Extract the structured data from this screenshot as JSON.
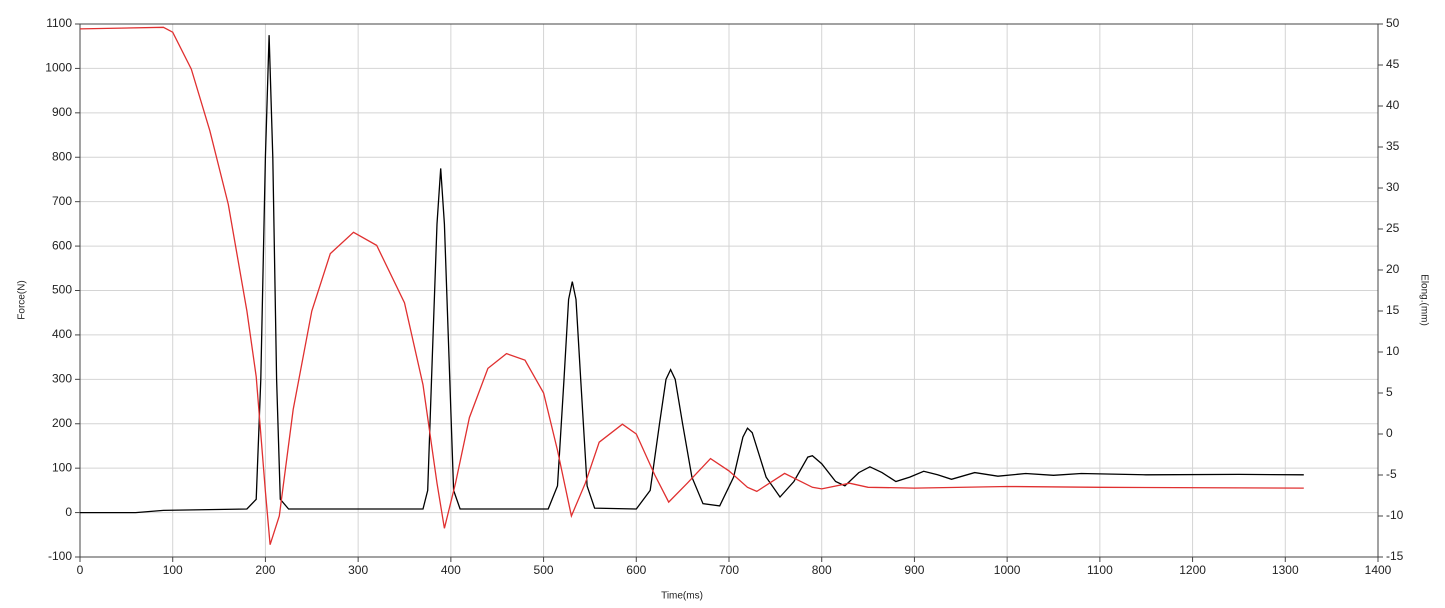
{
  "chart_data": {
    "type": "line",
    "x_label": "Time(ms)",
    "y_label": "Force(N)",
    "y2_label": "Elong.(mm)",
    "xlim": [
      0,
      1400
    ],
    "xticks": [
      0,
      100,
      200,
      300,
      400,
      500,
      600,
      700,
      800,
      900,
      1000,
      1100,
      1200,
      1300,
      1400
    ],
    "ylim": [
      -100,
      1100
    ],
    "yticks": [
      -100,
      0,
      100,
      200,
      300,
      400,
      500,
      600,
      700,
      800,
      900,
      1000,
      1100
    ],
    "y2lim": [
      -15,
      50
    ],
    "y2ticks": [
      -15,
      -10,
      -5,
      0,
      5,
      10,
      15,
      20,
      25,
      30,
      35,
      40,
      45,
      50
    ],
    "grid": true,
    "series": [
      {
        "color": "#000000",
        "axis": "y",
        "x": [
          0,
          60,
          90,
          180,
          190,
          195,
          200,
          204,
          208,
          212,
          216,
          225,
          370,
          375,
          380,
          385,
          389,
          393,
          398,
          403,
          410,
          505,
          515,
          522,
          527,
          531,
          535,
          540,
          547,
          555,
          600,
          615,
          625,
          632,
          637,
          642,
          650,
          660,
          672,
          690,
          705,
          715,
          720,
          725,
          740,
          755,
          770,
          785,
          790,
          800,
          815,
          825,
          840,
          852,
          865,
          880,
          895,
          910,
          925,
          940,
          965,
          990,
          1020,
          1050,
          1080,
          1150,
          1250,
          1320
        ],
        "values": [
          0,
          0,
          5,
          8,
          30,
          300,
          800,
          1075,
          800,
          300,
          30,
          8,
          8,
          50,
          350,
          650,
          775,
          650,
          350,
          50,
          8,
          8,
          60,
          300,
          480,
          520,
          480,
          300,
          60,
          10,
          8,
          50,
          200,
          300,
          322,
          300,
          200,
          80,
          20,
          15,
          80,
          170,
          190,
          180,
          80,
          35,
          70,
          125,
          128,
          110,
          70,
          60,
          90,
          103,
          90,
          70,
          80,
          93,
          85,
          75,
          90,
          82,
          88,
          84,
          88,
          85,
          86,
          85
        ]
      },
      {
        "color": "#e03030",
        "axis": "y2",
        "x": [
          0,
          90,
          100,
          120,
          140,
          160,
          180,
          190,
          200,
          205,
          215,
          230,
          250,
          270,
          295,
          320,
          350,
          370,
          385,
          393,
          405,
          420,
          440,
          460,
          480,
          500,
          515,
          530,
          545,
          560,
          585,
          600,
          620,
          635,
          655,
          680,
          700,
          720,
          730,
          760,
          790,
          800,
          830,
          850,
          900,
          1000,
          1100,
          1320
        ],
        "values": [
          49.4,
          49.6,
          49,
          44.5,
          37,
          28,
          15,
          7,
          -7,
          -13.5,
          -10,
          3,
          15,
          22,
          24.6,
          23,
          16,
          6,
          -6,
          -11.5,
          -6,
          2,
          8,
          9.8,
          9,
          5,
          -2,
          -10,
          -6,
          -1,
          1.2,
          0,
          -5,
          -8.3,
          -6,
          -3,
          -4.5,
          -6.5,
          -7,
          -4.8,
          -6.5,
          -6.7,
          -6,
          -6.5,
          -6.6,
          -6.4,
          -6.5,
          -6.6
        ]
      }
    ]
  }
}
